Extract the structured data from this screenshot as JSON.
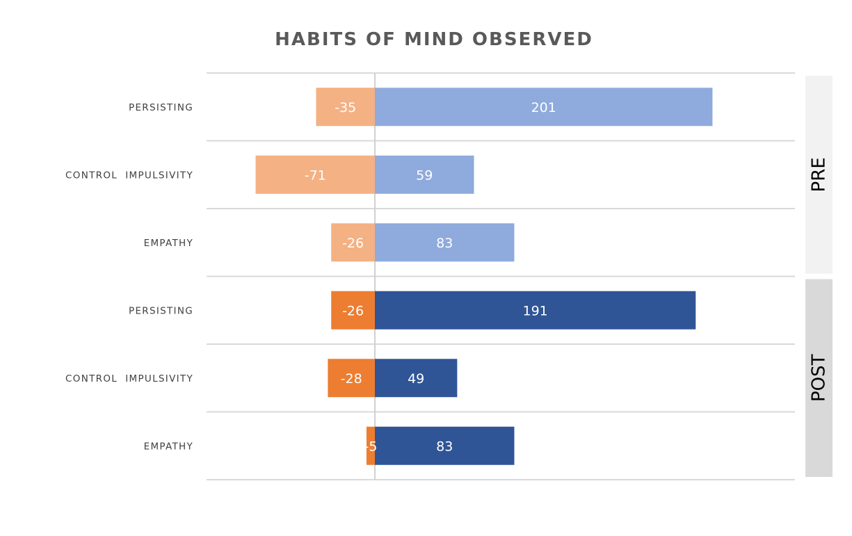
{
  "chart_data": {
    "type": "bar",
    "orientation": "horizontal",
    "stacked": "diverging",
    "title": "HABITS OF MIND OBSERVED",
    "groups": [
      "PRE",
      "POST"
    ],
    "rows": [
      {
        "group": "PRE",
        "category": "PERSISTING",
        "negative": -35,
        "positive": 201,
        "neg_label": "-35",
        "pos_label": "201"
      },
      {
        "group": "PRE",
        "category": "CONTROL  IMPULSIVITY",
        "negative": -71,
        "positive": 59,
        "neg_label": "-71",
        "pos_label": "59"
      },
      {
        "group": "PRE",
        "category": "EMPATHY",
        "negative": -26,
        "positive": 83,
        "neg_label": "-26",
        "pos_label": "83"
      },
      {
        "group": "POST",
        "category": "PERSISTING",
        "negative": -26,
        "positive": 191,
        "neg_label": "-26",
        "pos_label": "191"
      },
      {
        "group": "POST",
        "category": "CONTROL  IMPULSIVITY",
        "negative": -28,
        "positive": 49,
        "neg_label": "-28",
        "pos_label": "49"
      },
      {
        "group": "POST",
        "category": "EMPATHY",
        "negative": -5,
        "positive": 83,
        "neg_label": "-5",
        "pos_label": "83"
      }
    ],
    "xlim": [
      -100,
      250
    ],
    "grid": false,
    "colors": {
      "PRE": {
        "negative": "#f4b183",
        "positive": "#8faadc",
        "panel": "#f2f2f2"
      },
      "POST": {
        "negative": "#ed7d31",
        "positive": "#2f5597",
        "panel": "#d9d9d9"
      }
    }
  }
}
